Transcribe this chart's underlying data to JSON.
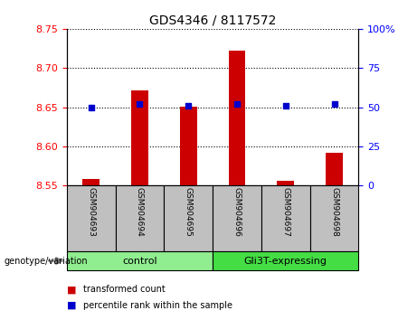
{
  "title": "GDS4346 / 8117572",
  "samples": [
    "GSM904693",
    "GSM904694",
    "GSM904695",
    "GSM904696",
    "GSM904697",
    "GSM904698"
  ],
  "transformed_counts": [
    8.558,
    8.672,
    8.651,
    8.722,
    8.556,
    8.592
  ],
  "percentile_ranks": [
    50,
    52,
    51,
    52,
    51,
    52
  ],
  "ylim_left": [
    8.55,
    8.75
  ],
  "ylim_right": [
    0,
    100
  ],
  "yticks_left": [
    8.55,
    8.6,
    8.65,
    8.7,
    8.75
  ],
  "yticks_right": [
    0,
    25,
    50,
    75,
    100
  ],
  "ytick_labels_right": [
    "0",
    "25",
    "50",
    "75",
    "100%"
  ],
  "bar_color": "#cc0000",
  "dot_color": "#0000cc",
  "groups": [
    {
      "label": "control",
      "indices": [
        0,
        1,
        2
      ],
      "color": "#90ee90"
    },
    {
      "label": "Gli3T-expressing",
      "indices": [
        3,
        4,
        5
      ],
      "color": "#44dd44"
    }
  ],
  "legend_items": [
    {
      "label": "transformed count",
      "color": "#cc0000"
    },
    {
      "label": "percentile rank within the sample",
      "color": "#0000cc"
    }
  ],
  "genotype_label": "genotype/variation",
  "background_plot": "#ffffff",
  "background_xtick": "#c0c0c0",
  "bar_width": 0.35
}
